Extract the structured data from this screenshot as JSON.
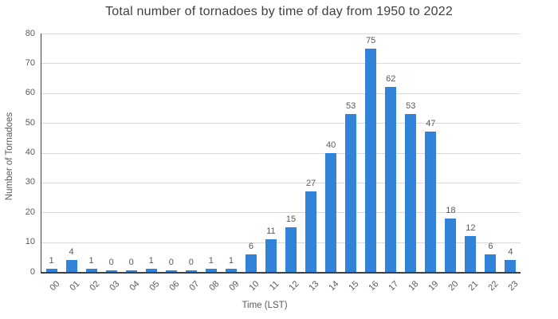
{
  "chart_data": {
    "type": "bar",
    "title": "Total number of tornadoes by time of day from 1950 to 2022",
    "xlabel": "Time (LST)",
    "ylabel": "Number of Tornadoes",
    "categories": [
      "00",
      "01",
      "02",
      "03",
      "04",
      "05",
      "06",
      "07",
      "08",
      "09",
      "10",
      "11",
      "12",
      "13",
      "14",
      "15",
      "16",
      "17",
      "18",
      "19",
      "20",
      "21",
      "22",
      "23"
    ],
    "values": [
      1,
      4,
      1,
      0,
      0,
      1,
      0,
      0,
      1,
      1,
      6,
      11,
      15,
      27,
      40,
      53,
      75,
      62,
      53,
      47,
      18,
      12,
      6,
      4
    ],
    "ylim": [
      0,
      80
    ],
    "yticks": [
      0,
      10,
      20,
      30,
      40,
      50,
      60,
      70,
      80
    ],
    "grid": true,
    "legend": "none",
    "colors": {
      "bar": "#3182d9",
      "title_text": "#404040",
      "label_text": "#595959",
      "gridline": "#d9d9d9",
      "axis_line": "#404040",
      "background": "#ffffff"
    }
  }
}
